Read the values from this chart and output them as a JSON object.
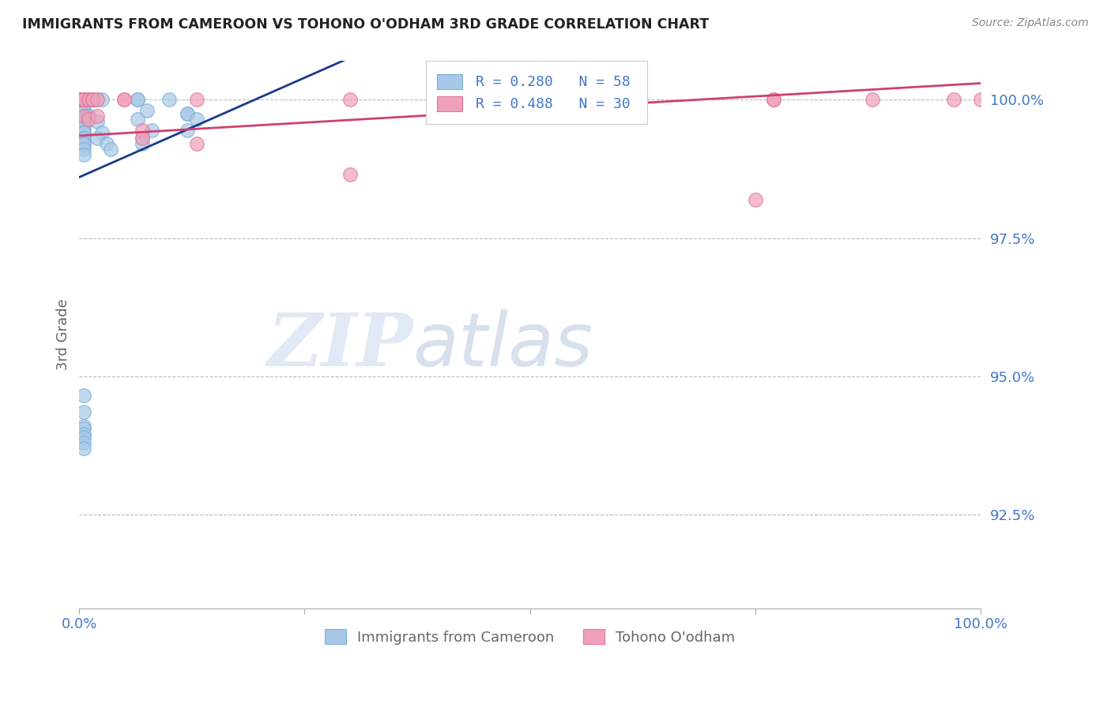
{
  "title": "IMMIGRANTS FROM CAMEROON VS TOHONO O'ODHAM 3RD GRADE CORRELATION CHART",
  "source": "Source: ZipAtlas.com",
  "ylabel": "3rd Grade",
  "xlim": [
    0.0,
    1.0
  ],
  "ylim": [
    0.908,
    1.007
  ],
  "yticks": [
    0.925,
    0.95,
    0.975,
    1.0
  ],
  "ytick_labels": [
    "92.5%",
    "95.0%",
    "97.5%",
    "100.0%"
  ],
  "xticks": [
    0.0,
    0.25,
    0.5,
    0.75,
    1.0
  ],
  "xtick_labels": [
    "0.0%",
    "",
    "",
    "",
    "100.0%"
  ],
  "legend_r_blue": "R = 0.280",
  "legend_n_blue": "N = 58",
  "legend_r_pink": "R = 0.488",
  "legend_n_pink": "N = 30",
  "label_blue": "Immigrants from Cameroon",
  "label_pink": "Tohono O'odham",
  "blue_color": "#a8c8e8",
  "pink_color": "#f0a0b8",
  "blue_edge_color": "#7ab0d8",
  "pink_edge_color": "#e07898",
  "blue_line_color": "#1a3a8a",
  "pink_line_color": "#d04070",
  "blue_scatter": [
    [
      0.0,
      1.0
    ],
    [
      0.0,
      1.0
    ],
    [
      0.0,
      1.0
    ],
    [
      0.0,
      1.0
    ],
    [
      0.0,
      1.0
    ],
    [
      0.005,
      1.0
    ],
    [
      0.005,
      1.0
    ],
    [
      0.005,
      1.0
    ],
    [
      0.01,
      1.0
    ],
    [
      0.01,
      1.0
    ],
    [
      0.015,
      1.0
    ],
    [
      0.015,
      1.0
    ],
    [
      0.02,
      1.0
    ],
    [
      0.025,
      1.0
    ],
    [
      0.065,
      1.0
    ],
    [
      0.065,
      1.0
    ],
    [
      0.1,
      1.0
    ],
    [
      0.005,
      0.999
    ],
    [
      0.005,
      0.998
    ],
    [
      0.005,
      0.998
    ],
    [
      0.008,
      0.997
    ],
    [
      0.01,
      0.997
    ],
    [
      0.01,
      0.997
    ],
    [
      0.005,
      0.9965
    ],
    [
      0.005,
      0.996
    ],
    [
      0.005,
      0.996
    ],
    [
      0.02,
      0.996
    ],
    [
      0.005,
      0.995
    ],
    [
      0.005,
      0.995
    ],
    [
      0.005,
      0.994
    ],
    [
      0.005,
      0.994
    ],
    [
      0.025,
      0.994
    ],
    [
      0.005,
      0.993
    ],
    [
      0.005,
      0.993
    ],
    [
      0.02,
      0.993
    ],
    [
      0.005,
      0.992
    ],
    [
      0.005,
      0.992
    ],
    [
      0.03,
      0.992
    ],
    [
      0.005,
      0.991
    ],
    [
      0.035,
      0.991
    ],
    [
      0.005,
      0.99
    ],
    [
      0.065,
      0.9965
    ],
    [
      0.075,
      0.998
    ],
    [
      0.12,
      0.9975
    ],
    [
      0.12,
      0.9975
    ],
    [
      0.13,
      0.9965
    ],
    [
      0.07,
      0.993
    ],
    [
      0.07,
      0.992
    ],
    [
      0.08,
      0.9945
    ],
    [
      0.12,
      0.9945
    ],
    [
      0.005,
      0.9465
    ],
    [
      0.005,
      0.9435
    ],
    [
      0.005,
      0.941
    ],
    [
      0.005,
      0.9405
    ],
    [
      0.005,
      0.9395
    ],
    [
      0.005,
      0.939
    ],
    [
      0.005,
      0.938
    ],
    [
      0.005,
      0.937
    ]
  ],
  "pink_scatter": [
    [
      0.0,
      1.0
    ],
    [
      0.005,
      1.0
    ],
    [
      0.005,
      1.0
    ],
    [
      0.005,
      1.0
    ],
    [
      0.01,
      1.0
    ],
    [
      0.01,
      1.0
    ],
    [
      0.015,
      1.0
    ],
    [
      0.015,
      1.0
    ],
    [
      0.02,
      1.0
    ],
    [
      0.05,
      1.0
    ],
    [
      0.05,
      1.0
    ],
    [
      0.13,
      1.0
    ],
    [
      0.3,
      1.0
    ],
    [
      0.42,
      1.0
    ],
    [
      0.52,
      1.0
    ],
    [
      0.62,
      1.0
    ],
    [
      0.62,
      1.0
    ],
    [
      0.77,
      1.0
    ],
    [
      0.77,
      1.0
    ],
    [
      0.88,
      1.0
    ],
    [
      0.97,
      1.0
    ],
    [
      0.005,
      0.997
    ],
    [
      0.01,
      0.9965
    ],
    [
      0.02,
      0.997
    ],
    [
      0.07,
      0.9945
    ],
    [
      0.07,
      0.993
    ],
    [
      0.13,
      0.992
    ],
    [
      0.3,
      0.9865
    ],
    [
      0.75,
      0.982
    ],
    [
      1.0,
      1.0
    ]
  ],
  "blue_line_x": [
    0.0,
    0.25
  ],
  "blue_line_y": [
    0.986,
    1.004
  ],
  "pink_line_x": [
    0.0,
    1.0
  ],
  "pink_line_y": [
    0.9935,
    1.003
  ],
  "watermark_zip": "ZIP",
  "watermark_atlas": "atlas",
  "background_color": "#ffffff",
  "title_color": "#222222",
  "axis_label_color": "#666666",
  "tick_color": "#4477cc",
  "grid_color": "#bbbbbb",
  "source_color": "#888888"
}
